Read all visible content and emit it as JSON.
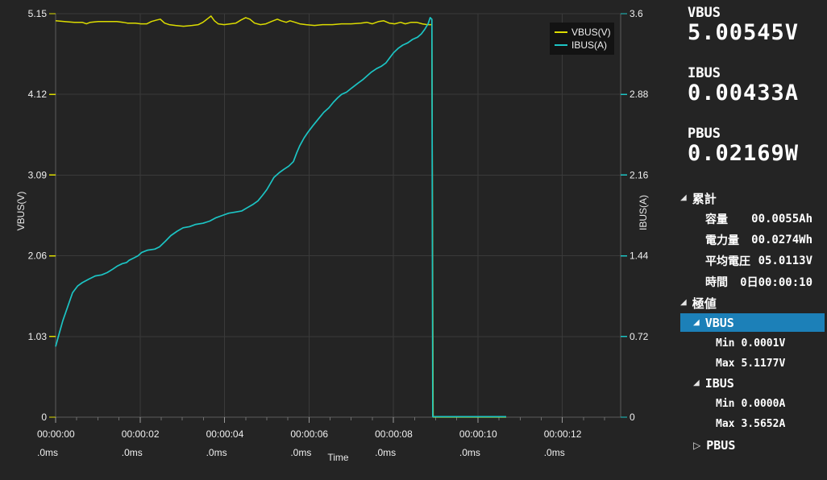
{
  "icons": {
    "expanded": "◢",
    "collapsed": "▷"
  },
  "chart_data": {
    "type": "line",
    "title": "",
    "xlabel": "Time",
    "x_range_s": [
      0,
      13.38
    ],
    "x_minor_step_s": 0.5,
    "grid": true,
    "legend_position": "top-right",
    "x_major_ticks": [
      {
        "s": 0,
        "time": "00:00:00",
        "ms": ".0ms"
      },
      {
        "s": 2,
        "time": "00:00:02",
        "ms": ".0ms"
      },
      {
        "s": 4,
        "time": "00:00:04",
        "ms": ".0ms"
      },
      {
        "s": 6,
        "time": "00:00:06",
        "ms": ".0ms"
      },
      {
        "s": 8,
        "time": "00:00:08",
        "ms": ".0ms"
      },
      {
        "s": 10,
        "time": "00:00:10",
        "ms": ".0ms"
      },
      {
        "s": 12,
        "time": "00:00:12",
        "ms": ".0ms"
      }
    ],
    "left_axis": {
      "title": "VBUS(V)",
      "color": "#dcdc00",
      "range": [
        0,
        5.15
      ],
      "ticks": [
        {
          "v": 0,
          "label": "0"
        },
        {
          "v": 1.03,
          "label": "1.03"
        },
        {
          "v": 2.06,
          "label": "2.06"
        },
        {
          "v": 3.09,
          "label": "3.09"
        },
        {
          "v": 4.12,
          "label": "4.12"
        },
        {
          "v": 5.15,
          "label": "5.15"
        }
      ]
    },
    "right_axis": {
      "title": "IBUS(A)",
      "color": "#1cc4c4",
      "range": [
        0,
        3.6
      ],
      "ticks": [
        {
          "v": 0,
          "label": "0"
        },
        {
          "v": 0.72,
          "label": "0.72"
        },
        {
          "v": 1.44,
          "label": "1.44"
        },
        {
          "v": 2.16,
          "label": "2.16"
        },
        {
          "v": 2.88,
          "label": "2.88"
        },
        {
          "v": 3.6,
          "label": "3.6"
        }
      ]
    },
    "legend": [
      {
        "label": "VBUS(V)",
        "color": "#dcdc00"
      },
      {
        "label": "IBUS(A)",
        "color": "#1cc4c4"
      }
    ],
    "series": [
      {
        "name": "VBUS(V)",
        "axis": "left",
        "color": "#dcdc00",
        "width": 1.5,
        "points": [
          [
            0,
            5.06
          ],
          [
            0.21,
            5.05
          ],
          [
            0.44,
            5.04
          ],
          [
            0.63,
            5.04
          ],
          [
            0.73,
            5.02
          ],
          [
            0.82,
            5.04
          ],
          [
            1.01,
            5.05
          ],
          [
            1.22,
            5.05
          ],
          [
            1.45,
            5.05
          ],
          [
            1.6,
            5.04
          ],
          [
            1.7,
            5.03
          ],
          [
            1.89,
            5.03
          ],
          [
            2.02,
            5.02
          ],
          [
            2.16,
            5.02
          ],
          [
            2.27,
            5.05
          ],
          [
            2.4,
            5.07
          ],
          [
            2.48,
            5.08
          ],
          [
            2.58,
            5.03
          ],
          [
            2.69,
            5.01
          ],
          [
            2.84,
            5.0
          ],
          [
            3.03,
            4.99
          ],
          [
            3.23,
            5.0
          ],
          [
            3.38,
            5.01
          ],
          [
            3.49,
            5.04
          ],
          [
            3.61,
            5.09
          ],
          [
            3.68,
            5.12
          ],
          [
            3.76,
            5.06
          ],
          [
            3.85,
            5.02
          ],
          [
            3.99,
            5.01
          ],
          [
            4.14,
            5.02
          ],
          [
            4.27,
            5.03
          ],
          [
            4.39,
            5.07
          ],
          [
            4.5,
            5.1
          ],
          [
            4.6,
            5.08
          ],
          [
            4.71,
            5.03
          ],
          [
            4.85,
            5.01
          ],
          [
            4.98,
            5.02
          ],
          [
            5.11,
            5.05
          ],
          [
            5.25,
            5.08
          ],
          [
            5.34,
            5.06
          ],
          [
            5.46,
            5.04
          ],
          [
            5.55,
            5.06
          ],
          [
            5.67,
            5.04
          ],
          [
            5.78,
            5.02
          ],
          [
            5.93,
            5.01
          ],
          [
            6.13,
            5.0
          ],
          [
            6.32,
            5.01
          ],
          [
            6.55,
            5.01
          ],
          [
            6.77,
            5.02
          ],
          [
            7.0,
            5.02
          ],
          [
            7.23,
            5.03
          ],
          [
            7.37,
            5.04
          ],
          [
            7.5,
            5.02
          ],
          [
            7.65,
            5.05
          ],
          [
            7.77,
            5.06
          ],
          [
            7.9,
            5.03
          ],
          [
            8.03,
            5.02
          ],
          [
            8.17,
            5.04
          ],
          [
            8.28,
            5.02
          ],
          [
            8.42,
            5.04
          ],
          [
            8.55,
            5.04
          ],
          [
            8.68,
            5.02
          ],
          [
            8.8,
            5.01
          ],
          [
            8.91,
            5.01
          ],
          [
            8.94,
            0.001
          ],
          [
            10.67,
            0.001
          ]
        ]
      },
      {
        "name": "IBUS(A)",
        "axis": "right",
        "color": "#1cc4c4",
        "width": 1.7,
        "points": [
          [
            0,
            0.63
          ],
          [
            0.08,
            0.74
          ],
          [
            0.17,
            0.86
          ],
          [
            0.29,
            0.99
          ],
          [
            0.4,
            1.11
          ],
          [
            0.52,
            1.17
          ],
          [
            0.63,
            1.2
          ],
          [
            0.78,
            1.23
          ],
          [
            0.94,
            1.26
          ],
          [
            1.09,
            1.27
          ],
          [
            1.22,
            1.29
          ],
          [
            1.35,
            1.32
          ],
          [
            1.47,
            1.35
          ],
          [
            1.58,
            1.37
          ],
          [
            1.68,
            1.38
          ],
          [
            1.74,
            1.4
          ],
          [
            1.85,
            1.42
          ],
          [
            1.95,
            1.44
          ],
          [
            2.04,
            1.47
          ],
          [
            2.18,
            1.49
          ],
          [
            2.35,
            1.5
          ],
          [
            2.46,
            1.52
          ],
          [
            2.6,
            1.57
          ],
          [
            2.73,
            1.62
          ],
          [
            2.88,
            1.66
          ],
          [
            3.02,
            1.69
          ],
          [
            3.17,
            1.7
          ],
          [
            3.32,
            1.72
          ],
          [
            3.49,
            1.73
          ],
          [
            3.65,
            1.75
          ],
          [
            3.8,
            1.78
          ],
          [
            3.95,
            1.8
          ],
          [
            4.1,
            1.82
          ],
          [
            4.26,
            1.83
          ],
          [
            4.41,
            1.84
          ],
          [
            4.54,
            1.87
          ],
          [
            4.68,
            1.9
          ],
          [
            4.79,
            1.93
          ],
          [
            4.9,
            1.98
          ],
          [
            5.0,
            2.03
          ],
          [
            5.08,
            2.08
          ],
          [
            5.17,
            2.14
          ],
          [
            5.29,
            2.18
          ],
          [
            5.4,
            2.21
          ],
          [
            5.52,
            2.24
          ],
          [
            5.63,
            2.28
          ],
          [
            5.71,
            2.36
          ],
          [
            5.78,
            2.42
          ],
          [
            5.88,
            2.49
          ],
          [
            5.97,
            2.54
          ],
          [
            6.09,
            2.6
          ],
          [
            6.22,
            2.66
          ],
          [
            6.35,
            2.72
          ],
          [
            6.47,
            2.76
          ],
          [
            6.58,
            2.81
          ],
          [
            6.68,
            2.85
          ],
          [
            6.77,
            2.88
          ],
          [
            6.89,
            2.9
          ],
          [
            7.02,
            2.94
          ],
          [
            7.16,
            2.98
          ],
          [
            7.27,
            3.01
          ],
          [
            7.39,
            3.05
          ],
          [
            7.48,
            3.08
          ],
          [
            7.6,
            3.11
          ],
          [
            7.71,
            3.13
          ],
          [
            7.82,
            3.16
          ],
          [
            7.92,
            3.21
          ],
          [
            8.0,
            3.25
          ],
          [
            8.11,
            3.29
          ],
          [
            8.22,
            3.32
          ],
          [
            8.34,
            3.34
          ],
          [
            8.45,
            3.37
          ],
          [
            8.57,
            3.39
          ],
          [
            8.66,
            3.42
          ],
          [
            8.74,
            3.46
          ],
          [
            8.82,
            3.51
          ],
          [
            8.87,
            3.565
          ],
          [
            8.91,
            3.55
          ],
          [
            8.93,
            0.004
          ],
          [
            10.67,
            0.004
          ]
        ]
      }
    ]
  },
  "sidebar": {
    "selection_color": "#1c80b8",
    "meters": [
      {
        "name": "VBUS",
        "value": "5.00545V"
      },
      {
        "name": "IBUS",
        "value": "0.00433A"
      },
      {
        "name": "PBUS",
        "value": "0.02169W"
      }
    ],
    "totals": {
      "title": "累計",
      "rows": [
        {
          "label": "容量",
          "value": "00.0055Ah"
        },
        {
          "label": "電力量",
          "value": "00.0274Wh"
        },
        {
          "label": "平均電圧",
          "value": "05.0113V"
        },
        {
          "label": "時間",
          "value": "0日00:00:10"
        }
      ]
    },
    "extremes": {
      "title": "極値",
      "groups": [
        {
          "name": "VBUS",
          "rows": [
            {
              "label": "Min",
              "value": "0.0001V"
            },
            {
              "label": "Max",
              "value": "5.1177V"
            }
          ]
        },
        {
          "name": "IBUS",
          "rows": [
            {
              "label": "Min",
              "value": "0.0000A"
            },
            {
              "label": "Max",
              "value": "3.5652A"
            }
          ]
        },
        {
          "name": "PBUS",
          "rows": []
        }
      ]
    }
  }
}
